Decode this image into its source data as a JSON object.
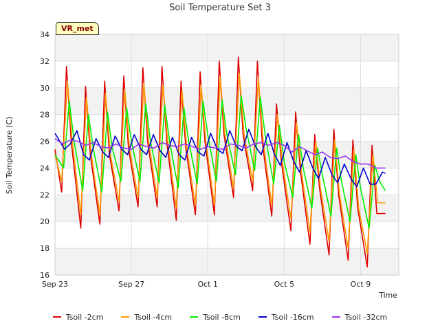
{
  "chart_data": {
    "type": "line",
    "title": "Soil Temperature Set 3",
    "xlabel": "Time",
    "ylabel": "Soil Temperature (C)",
    "badge": "VR_met",
    "xlim": [
      "2023-09-23",
      "2023-10-11"
    ],
    "ylim": [
      16,
      34
    ],
    "yticks": [
      16,
      18,
      20,
      22,
      24,
      26,
      28,
      30,
      32,
      34
    ],
    "xticks": [
      {
        "label": "Sep 23",
        "day": 0
      },
      {
        "label": "Sep 27",
        "day": 4
      },
      {
        "label": "Oct 1",
        "day": 8
      },
      {
        "label": "Oct 5",
        "day": 12
      },
      {
        "label": "Oct 9",
        "day": 16
      }
    ],
    "grid": true,
    "legend_position": "bottom",
    "series": [
      {
        "name": "Tsoil -2cm",
        "color": "#dd0000",
        "x": [
          0.0,
          0.35,
          0.6,
          0.85,
          1.35,
          1.6,
          1.85,
          2.35,
          2.6,
          2.85,
          3.35,
          3.6,
          3.85,
          4.35,
          4.6,
          4.85,
          5.35,
          5.6,
          5.85,
          6.35,
          6.6,
          6.85,
          7.35,
          7.6,
          7.85,
          8.35,
          8.6,
          8.85,
          9.35,
          9.6,
          9.85,
          10.35,
          10.6,
          10.85,
          11.35,
          11.6,
          11.85,
          12.35,
          12.6,
          12.85,
          13.35,
          13.6,
          13.85,
          14.35,
          14.6,
          14.85,
          15.35,
          15.6,
          15.85,
          16.35,
          16.6,
          16.85,
          17.1,
          17.3
        ],
        "y": [
          25.4,
          22.2,
          31.6,
          26.0,
          19.5,
          30.1,
          25.0,
          19.8,
          30.5,
          25.0,
          20.8,
          30.9,
          25.5,
          21.1,
          31.5,
          26.0,
          21.1,
          31.6,
          26.0,
          20.1,
          30.5,
          25.5,
          20.5,
          31.2,
          26.0,
          20.5,
          32.0,
          26.5,
          21.8,
          32.3,
          26.5,
          22.3,
          32.0,
          26.0,
          20.4,
          28.8,
          24.5,
          19.3,
          28.2,
          23.8,
          18.3,
          26.5,
          22.5,
          17.5,
          26.9,
          22.0,
          17.1,
          26.1,
          21.0,
          16.6,
          25.7,
          20.6,
          20.6,
          20.6
        ]
      },
      {
        "name": "Tsoil -4cm",
        "color": "#ff9900",
        "x": [
          0.0,
          0.35,
          0.65,
          0.9,
          1.35,
          1.65,
          1.9,
          2.35,
          2.65,
          2.9,
          3.35,
          3.65,
          3.9,
          4.35,
          4.65,
          4.9,
          5.35,
          5.65,
          5.9,
          6.35,
          6.65,
          6.9,
          7.35,
          7.65,
          7.9,
          8.35,
          8.65,
          8.9,
          9.35,
          9.65,
          9.9,
          10.35,
          10.65,
          10.9,
          11.35,
          11.65,
          11.9,
          12.35,
          12.65,
          12.9,
          13.35,
          13.65,
          13.9,
          14.35,
          14.65,
          14.9,
          15.35,
          15.65,
          15.9,
          16.35,
          16.65,
          16.9,
          17.3
        ],
        "y": [
          25.0,
          23.0,
          30.5,
          26.0,
          20.5,
          29.3,
          25.0,
          20.5,
          29.6,
          25.0,
          21.5,
          29.9,
          25.5,
          21.8,
          30.3,
          26.0,
          21.8,
          30.2,
          26.0,
          21.0,
          29.8,
          25.5,
          21.2,
          30.2,
          26.0,
          21.2,
          30.8,
          26.5,
          22.5,
          31.1,
          26.5,
          23.0,
          30.8,
          26.0,
          21.2,
          28.0,
          24.5,
          20.2,
          27.4,
          23.8,
          19.2,
          26.0,
          22.5,
          18.5,
          26.1,
          22.0,
          18.0,
          25.4,
          21.0,
          17.6,
          25.0,
          21.4,
          21.4
        ]
      },
      {
        "name": "Tsoil -8cm",
        "color": "#00ee00",
        "x": [
          0.0,
          0.45,
          0.75,
          1.0,
          1.45,
          1.75,
          2.0,
          2.45,
          2.75,
          3.0,
          3.45,
          3.75,
          4.0,
          4.45,
          4.75,
          5.0,
          5.45,
          5.75,
          6.0,
          6.45,
          6.75,
          7.0,
          7.45,
          7.75,
          8.0,
          8.45,
          8.75,
          9.0,
          9.45,
          9.75,
          10.0,
          10.45,
          10.75,
          11.0,
          11.45,
          11.75,
          12.0,
          12.45,
          12.75,
          13.0,
          13.45,
          13.75,
          14.0,
          14.45,
          14.75,
          15.0,
          15.45,
          15.75,
          16.0,
          16.45,
          16.75,
          17.0,
          17.3
        ],
        "y": [
          25.0,
          24.0,
          29.0,
          26.0,
          22.3,
          28.0,
          25.5,
          22.2,
          28.2,
          25.5,
          23.0,
          28.5,
          26.0,
          23.0,
          28.8,
          26.0,
          22.9,
          28.7,
          26.0,
          22.5,
          28.5,
          26.0,
          22.8,
          29.0,
          26.5,
          23.0,
          29.1,
          26.5,
          23.5,
          29.4,
          27.0,
          23.8,
          29.3,
          26.5,
          22.8,
          27.2,
          24.5,
          21.8,
          26.5,
          24.0,
          21.0,
          25.5,
          23.5,
          20.4,
          25.5,
          23.0,
          20.0,
          25.0,
          22.5,
          19.5,
          24.2,
          23.0,
          22.3
        ]
      },
      {
        "name": "Tsoil -16cm",
        "color": "#0000cc",
        "x": [
          0.0,
          0.5,
          0.8,
          1.15,
          1.5,
          1.8,
          2.15,
          2.5,
          2.8,
          3.15,
          3.5,
          3.8,
          4.15,
          4.5,
          4.8,
          5.15,
          5.5,
          5.8,
          6.15,
          6.5,
          6.8,
          7.15,
          7.5,
          7.8,
          8.15,
          8.5,
          8.8,
          9.15,
          9.5,
          9.8,
          10.15,
          10.5,
          10.8,
          11.15,
          11.5,
          11.8,
          12.15,
          12.5,
          12.8,
          13.15,
          13.5,
          13.8,
          14.15,
          14.5,
          14.8,
          15.15,
          15.5,
          15.8,
          16.15,
          16.5,
          16.8,
          17.15,
          17.3
        ],
        "y": [
          26.6,
          25.4,
          25.8,
          26.8,
          25.0,
          24.6,
          26.2,
          25.2,
          24.8,
          26.4,
          25.4,
          25.0,
          26.5,
          25.4,
          25.0,
          26.5,
          25.3,
          24.8,
          26.3,
          25.0,
          24.6,
          26.3,
          25.2,
          24.9,
          26.6,
          25.4,
          25.1,
          26.8,
          25.6,
          25.3,
          26.9,
          25.6,
          25.0,
          26.6,
          25.0,
          24.2,
          25.9,
          24.5,
          23.7,
          25.3,
          24.0,
          23.2,
          24.8,
          23.5,
          22.9,
          24.3,
          23.2,
          22.6,
          24.0,
          22.8,
          22.8,
          23.7,
          23.6
        ]
      },
      {
        "name": "Tsoil -32cm",
        "color": "#9933ee",
        "x": [
          0.0,
          0.4,
          0.8,
          1.2,
          1.6,
          2.0,
          2.4,
          2.8,
          3.2,
          3.6,
          4.0,
          4.4,
          4.8,
          5.2,
          5.6,
          6.0,
          6.4,
          6.8,
          7.2,
          7.6,
          8.0,
          8.4,
          8.8,
          9.2,
          9.6,
          10.0,
          10.4,
          10.8,
          11.2,
          11.6,
          12.0,
          12.4,
          12.8,
          13.2,
          13.6,
          14.0,
          14.4,
          14.8,
          15.2,
          15.6,
          16.0,
          16.4,
          16.8,
          17.2,
          17.3
        ],
        "y": [
          26.2,
          25.8,
          26.1,
          26.0,
          25.7,
          25.9,
          25.6,
          25.5,
          25.8,
          25.5,
          25.4,
          25.8,
          25.6,
          25.5,
          25.9,
          25.7,
          25.6,
          25.8,
          25.6,
          25.4,
          25.6,
          25.5,
          25.4,
          25.8,
          25.7,
          25.5,
          25.8,
          25.9,
          25.7,
          25.9,
          25.7,
          25.2,
          25.6,
          25.3,
          25.0,
          25.2,
          24.8,
          24.7,
          24.9,
          24.5,
          24.3,
          24.3,
          24.0,
          24.0,
          24.0
        ]
      }
    ]
  }
}
